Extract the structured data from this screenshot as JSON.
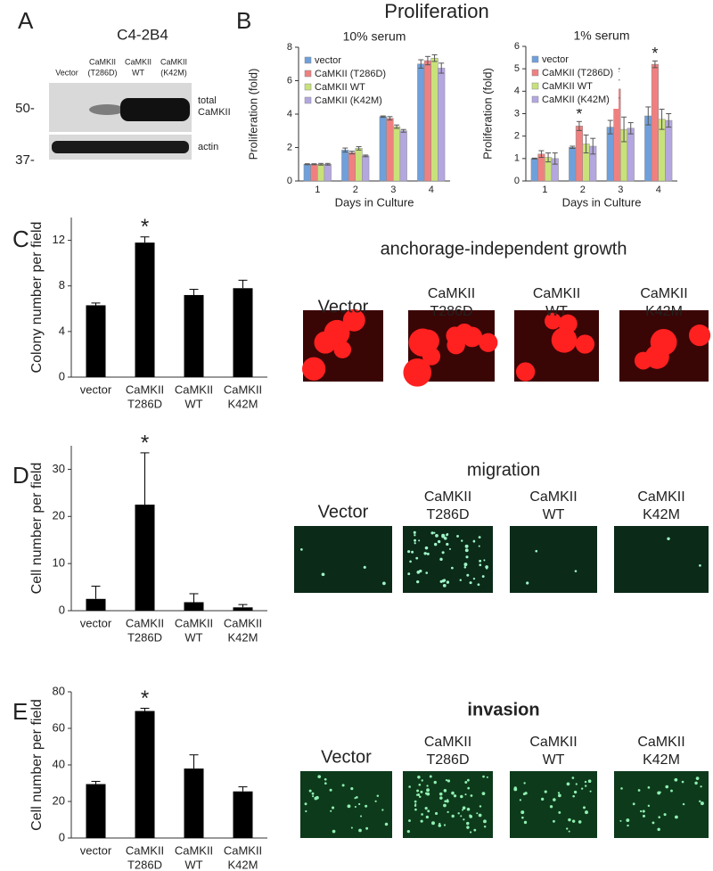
{
  "panel_labels": [
    "A",
    "B",
    "C",
    "D",
    "E"
  ],
  "proliferation_title": "Proliferation",
  "blot": {
    "cell_line": "C4-2B4",
    "lanes": [
      [
        "Vector"
      ],
      [
        "CaMKII",
        "(T286D)"
      ],
      [
        "CaMKII",
        "WT"
      ],
      [
        "CaMKII",
        "(K42M)"
      ]
    ],
    "markers": [
      "50-",
      "37-"
    ],
    "bands": [
      [
        "total",
        "CaMKII"
      ],
      [
        "actin"
      ]
    ]
  },
  "image_panels": [
    {
      "title": "anchorage-independent growth",
      "labels": [
        [
          "Vector"
        ],
        [
          "CaMKII",
          "T286D"
        ],
        [
          "CaMKII",
          "WT"
        ],
        [
          "CaMKII",
          "K42M"
        ]
      ]
    },
    {
      "title": "migration",
      "labels": [
        [
          "Vector"
        ],
        [
          "CaMKII",
          "T286D"
        ],
        [
          "CaMKII",
          "WT"
        ],
        [
          "CaMKII",
          "K42M"
        ]
      ]
    },
    {
      "title": "invasion",
      "labels": [
        [
          "Vector"
        ],
        [
          "CaMKII",
          "T286D"
        ],
        [
          "CaMKII",
          "WT"
        ],
        [
          "CaMKII",
          "K42M"
        ]
      ]
    }
  ],
  "chart_data": [
    {
      "type": "bar",
      "title": "10% serum",
      "ylabel": "Proliferation (fold)",
      "xlabel": "Days in Culture",
      "categories": [
        "1",
        "2",
        "3",
        "4"
      ],
      "legend": "upper left",
      "ylim": [
        0,
        8
      ],
      "yticks": [
        0,
        2,
        4,
        6,
        8
      ],
      "series": [
        {
          "name": "vector",
          "color": "#6fa0dc",
          "values": [
            1,
            1.85,
            3.85,
            7.0
          ],
          "errors": [
            0.03,
            0.12,
            0.04,
            0.25
          ]
        },
        {
          "name": "CaMKII (T286D)",
          "color": "#f08080",
          "values": [
            1,
            1.7,
            3.75,
            7.2
          ],
          "errors": [
            0.03,
            0.08,
            0.1,
            0.25
          ]
        },
        {
          "name": "CaMKII WT",
          "color": "#c8e27a",
          "values": [
            1,
            1.95,
            3.25,
            7.35
          ],
          "errors": [
            0.05,
            0.1,
            0.1,
            0.2
          ]
        },
        {
          "name": "CaMKII (K42M)",
          "color": "#b4a7e0",
          "values": [
            1,
            1.5,
            3.0,
            6.75
          ],
          "errors": [
            0.05,
            0.05,
            0.08,
            0.3
          ]
        }
      ]
    },
    {
      "type": "bar",
      "title": "1% serum",
      "ylabel": "Proliferation (fold)",
      "xlabel": "Days in Culture",
      "categories": [
        "1",
        "2",
        "3",
        "4"
      ],
      "legend": "upper left",
      "ylim": [
        0,
        6
      ],
      "yticks": [
        0,
        1,
        2,
        3,
        4,
        5,
        6
      ],
      "series": [
        {
          "name": "vector",
          "color": "#6fa0dc",
          "values": [
            1,
            1.5,
            2.4,
            2.9
          ],
          "errors": [
            0.02,
            0.05,
            0.3,
            0.4
          ]
        },
        {
          "name": "CaMKII (T286D)",
          "color": "#f08080",
          "values": [
            1.2,
            2.45,
            4.1,
            5.2
          ],
          "errors": [
            0.15,
            0.2,
            0.4,
            0.15
          ]
        },
        {
          "name": "CaMKII WT",
          "color": "#c8e27a",
          "values": [
            1.05,
            1.65,
            2.3,
            2.75
          ],
          "errors": [
            0.2,
            0.4,
            0.55,
            0.45
          ]
        },
        {
          "name": "CaMKII (K42M)",
          "color": "#b4a7e0",
          "values": [
            1.0,
            1.55,
            2.35,
            2.7
          ],
          "errors": [
            0.25,
            0.35,
            0.25,
            0.3
          ]
        }
      ],
      "annotations": [
        {
          "text": "*",
          "category": 1,
          "series": 1
        },
        {
          "text": "*",
          "category": 2,
          "series": 1
        },
        {
          "text": "*",
          "category": 3,
          "series": 1
        }
      ]
    },
    {
      "type": "bar",
      "ylabel": "Colony number per field",
      "categories": [
        [
          "vector"
        ],
        [
          "CaMKII",
          "T286D"
        ],
        [
          "CaMKII",
          "WT"
        ],
        [
          "CaMKII",
          "K42M"
        ]
      ],
      "ylim": [
        0,
        14
      ],
      "yticks": [
        0,
        4,
        8,
        12
      ],
      "color": "#000000",
      "values": [
        6.3,
        11.8,
        7.2,
        7.8
      ],
      "errors": [
        0.2,
        0.5,
        0.5,
        0.7
      ],
      "annotations": [
        {
          "text": "*",
          "category": 1
        }
      ]
    },
    {
      "type": "bar",
      "ylabel": "Cell number per field",
      "categories": [
        [
          "vector"
        ],
        [
          "CaMKII",
          "T286D"
        ],
        [
          "CaMKII",
          "WT"
        ],
        [
          "CaMKII",
          "K42M"
        ]
      ],
      "ylim": [
        0,
        35
      ],
      "yticks": [
        0,
        10,
        20,
        30
      ],
      "color": "#000000",
      "values": [
        2.5,
        22.5,
        1.8,
        0.7
      ],
      "errors": [
        2.7,
        11,
        1.8,
        0.6
      ],
      "annotations": [
        {
          "text": "*",
          "category": 1
        }
      ]
    },
    {
      "type": "bar",
      "ylabel": "Cell number per field",
      "categories": [
        [
          "vector"
        ],
        [
          "CaMKII",
          "T286D"
        ],
        [
          "CaMKII",
          "WT"
        ],
        [
          "CaMKII",
          "K42M"
        ]
      ],
      "ylim": [
        0,
        80
      ],
      "yticks": [
        0,
        20,
        40,
        60,
        80
      ],
      "color": "#000000",
      "values": [
        29.5,
        69.5,
        38,
        25.5
      ],
      "errors": [
        1.5,
        1.5,
        7.5,
        2.5
      ],
      "annotations": [
        {
          "text": "*",
          "category": 1
        }
      ]
    }
  ]
}
